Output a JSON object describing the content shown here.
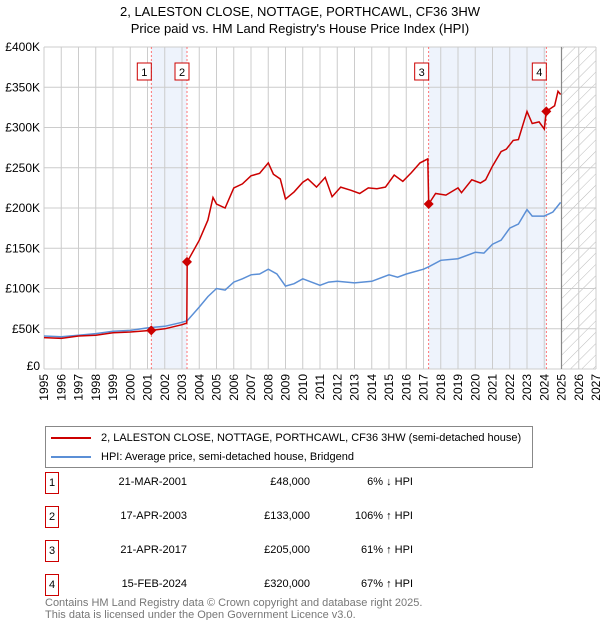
{
  "chart_data": {
    "type": "line",
    "title": "2, LALESTON CLOSE, NOTTAGE, PORTHCAWL, CF36 3HW",
    "subtitle": "Price paid vs. HM Land Registry's House Price Index (HPI)",
    "xlim": [
      1995,
      2027
    ],
    "ylim": [
      0,
      400000
    ],
    "y_ticks": [
      {
        "v": 0,
        "label": "£0"
      },
      {
        "v": 50000,
        "label": "£50K"
      },
      {
        "v": 100000,
        "label": "£100K"
      },
      {
        "v": 150000,
        "label": "£150K"
      },
      {
        "v": 200000,
        "label": "£200K"
      },
      {
        "v": 250000,
        "label": "£250K"
      },
      {
        "v": 300000,
        "label": "£300K"
      },
      {
        "v": 350000,
        "label": "£350K"
      },
      {
        "v": 400000,
        "label": "£400K"
      }
    ],
    "x_ticks": [
      "1995",
      "1996",
      "1997",
      "1998",
      "1999",
      "2000",
      "2001",
      "2002",
      "2003",
      "2004",
      "2005",
      "2006",
      "2007",
      "2008",
      "2009",
      "2010",
      "2011",
      "2012",
      "2013",
      "2014",
      "2015",
      "2016",
      "2017",
      "2018",
      "2019",
      "2020",
      "2021",
      "2022",
      "2023",
      "2024",
      "2025",
      "2026",
      "2027"
    ],
    "grid": true,
    "forecast_hatch_from": 2025,
    "shaded_periods": [
      [
        2001.22,
        2003.29
      ],
      [
        2017.3,
        2024.12
      ]
    ],
    "series": [
      {
        "name": "2, LALESTON CLOSE, NOTTAGE, PORTHCAWL, CF36 3HW (semi-detached house)",
        "color": "#cc0000",
        "x": [
          1995,
          1996,
          1997,
          1998,
          1999,
          2000,
          2001.22,
          2002,
          2003,
          2003.28,
          2003.3,
          2004,
          2004.5,
          2004.8,
          2005,
          2005.5,
          2006,
          2006.5,
          2007,
          2007.5,
          2008,
          2008.3,
          2008.7,
          2009,
          2009.5,
          2010,
          2010.3,
          2010.8,
          2011.3,
          2011.7,
          2012.2,
          2012.8,
          2013.3,
          2013.8,
          2014.3,
          2014.8,
          2015.3,
          2015.8,
          2016.3,
          2016.8,
          2017.25,
          2017.3,
          2017.7,
          2018.3,
          2019,
          2019.2,
          2019.8,
          2020.3,
          2020.6,
          2021,
          2021.5,
          2021.8,
          2022.2,
          2022.5,
          2023,
          2023.3,
          2023.7,
          2024,
          2024.12,
          2024.6,
          2024.8,
          2024.95
        ],
        "y": [
          39000,
          38000,
          41000,
          42000,
          45000,
          46000,
          48000,
          50000,
          55000,
          57000,
          133000,
          160000,
          185000,
          213000,
          205000,
          200000,
          225000,
          230000,
          240000,
          243000,
          256000,
          242000,
          236000,
          211000,
          220000,
          232000,
          236000,
          226000,
          238000,
          214000,
          226000,
          222000,
          218000,
          225000,
          224000,
          226000,
          241000,
          233000,
          244000,
          256000,
          261000,
          205000,
          218000,
          216000,
          225000,
          219000,
          235000,
          231000,
          235000,
          252000,
          270000,
          273000,
          284000,
          285000,
          320000,
          305000,
          307000,
          298000,
          320000,
          327000,
          345000,
          341000
        ]
      },
      {
        "name": "HPI: Average price, semi-detached house, Bridgend",
        "color": "#5b8fd6",
        "x": [
          1995,
          1996,
          1997,
          1998,
          1999,
          2000,
          2001,
          2002,
          2003,
          2003.3,
          2004,
          2004.5,
          2005,
          2005.5,
          2006,
          2006.5,
          2007,
          2007.5,
          2008,
          2008.5,
          2009,
          2009.5,
          2010,
          2010.5,
          2011,
          2011.5,
          2012,
          2013,
          2014,
          2015,
          2015.5,
          2016,
          2017,
          2017.3,
          2018,
          2019,
          2020,
          2020.5,
          2021,
          2021.5,
          2022,
          2022.5,
          2023,
          2023.3,
          2024,
          2024.5,
          2024.95
        ],
        "y": [
          41000,
          40000,
          42000,
          44000,
          47000,
          48000,
          51000,
          53000,
          58000,
          60000,
          77000,
          90000,
          100000,
          98000,
          108000,
          112000,
          117000,
          118000,
          124000,
          118000,
          103000,
          106000,
          112000,
          108000,
          104000,
          108000,
          109000,
          107000,
          109000,
          117000,
          114000,
          118000,
          124000,
          127000,
          135000,
          137000,
          145000,
          144000,
          155000,
          160000,
          175000,
          180000,
          198000,
          190000,
          190000,
          195000,
          207000
        ]
      }
    ],
    "sales": [
      {
        "id": "1",
        "x": 2001.22,
        "price": 48000,
        "date": "21-MAR-2001",
        "price_label": "£48,000",
        "hpi": "6% ↓ HPI"
      },
      {
        "id": "2",
        "x": 2003.29,
        "price": 133000,
        "date": "17-APR-2003",
        "price_label": "£133,000",
        "hpi": "106% ↑ HPI"
      },
      {
        "id": "3",
        "x": 2017.3,
        "price": 205000,
        "date": "21-APR-2017",
        "price_label": "£205,000",
        "hpi": "61% ↑ HPI"
      },
      {
        "id": "4",
        "x": 2024.12,
        "price": 320000,
        "date": "15-FEB-2024",
        "price_label": "£320,000",
        "hpi": "67% ↑ HPI"
      }
    ]
  },
  "legend": {
    "property": "2, LALESTON CLOSE, NOTTAGE, PORTHCAWL, CF36 3HW (semi-detached house)",
    "hpi": "HPI: Average price, semi-detached house, Bridgend"
  },
  "footer": {
    "line1": "Contains HM Land Registry data © Crown copyright and database right 2025.",
    "line2": "This data is licensed under the Open Government Licence v3.0."
  }
}
